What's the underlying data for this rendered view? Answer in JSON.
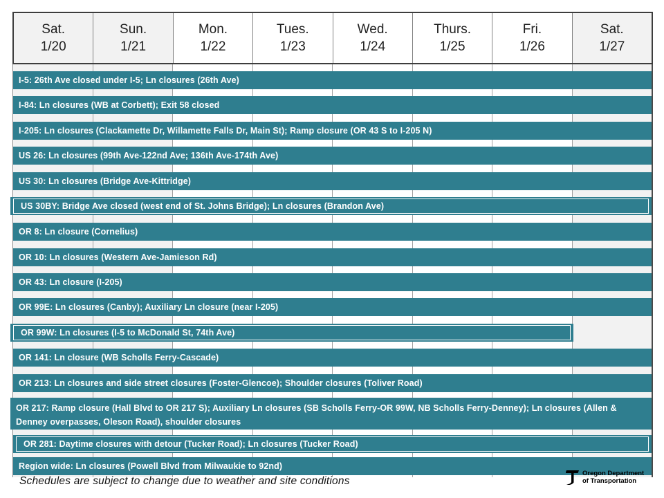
{
  "header": {
    "days": [
      {
        "name": "Sat.",
        "date": "1/20",
        "weekend": true
      },
      {
        "name": "Sun.",
        "date": "1/21",
        "weekend": true
      },
      {
        "name": "Mon.",
        "date": "1/22",
        "weekend": false
      },
      {
        "name": "Tues.",
        "date": "1/23",
        "weekend": false
      },
      {
        "name": "Wed.",
        "date": "1/24",
        "weekend": false
      },
      {
        "name": "Thurs.",
        "date": "1/25",
        "weekend": false
      },
      {
        "name": "Fri.",
        "date": "1/26",
        "weekend": false
      },
      {
        "name": "Sat.",
        "date": "1/27",
        "weekend": true
      }
    ]
  },
  "chart_data": {
    "type": "gantt",
    "title": "Weekly road closure schedule",
    "categories": [
      "Sat. 1/20",
      "Sun. 1/21",
      "Mon. 1/22",
      "Tues. 1/23",
      "Wed. 1/24",
      "Thurs. 1/25",
      "Fri. 1/26",
      "Sat. 1/27"
    ],
    "rows": [
      {
        "task": "I-5: 26th Ave closed under I-5; Ln closures (26th Ave)",
        "start": "1/20",
        "end": "1/27",
        "span_days": 8
      },
      {
        "task": "I-84: Ln closures (WB at Corbett); Exit 58 closed",
        "start": "1/20",
        "end": "1/27",
        "span_days": 8
      },
      {
        "task": "I-205: Ln closures (Clackamette Dr, Willamette Falls Dr, Main St); Ramp closure (OR 43 S to I-205 N)",
        "start": "1/20",
        "end": "1/27",
        "span_days": 8
      },
      {
        "task": "US 26: Ln closures (99th Ave-122nd Ave; 136th Ave-174th Ave)",
        "start": "1/20",
        "end": "1/27",
        "span_days": 8
      },
      {
        "task": "US 30: Ln closures (Bridge Ave-Kittridge)",
        "start": "1/20",
        "end": "1/27",
        "span_days": 8
      },
      {
        "task": "US 30BY: Bridge Ave closed (west end of St. Johns Bridge); Ln closures (Brandon Ave)",
        "start": "1/20",
        "end": "1/27",
        "span_days": 8
      },
      {
        "task": "OR 8: Ln closure (Cornelius)",
        "start": "1/20",
        "end": "1/27",
        "span_days": 8
      },
      {
        "task": "OR 10: Ln closures (Western Ave-Jamieson Rd)",
        "start": "1/20",
        "end": "1/27",
        "span_days": 8
      },
      {
        "task": "OR 43: Ln closure (I-205)",
        "start": "1/20",
        "end": "1/27",
        "span_days": 8
      },
      {
        "task": "OR 99E: Ln closures (Canby); Auxiliary Ln closure (near I-205)",
        "start": "1/20",
        "end": "1/27",
        "span_days": 8
      },
      {
        "task": "OR 99W: Ln closures (I-5 to McDonald St, 74th Ave)",
        "start": "1/20",
        "end": "1/26",
        "span_days": 7
      },
      {
        "task": "OR 141: Ln closure (WB Scholls Ferry-Cascade)",
        "start": "1/20",
        "end": "1/27",
        "span_days": 8
      },
      {
        "task": "OR 213: Ln closures and side street closures (Foster-Glencoe); Shoulder closures (Toliver Road)",
        "start": "1/20",
        "end": "1/27",
        "span_days": 8
      },
      {
        "task": "OR 217: Ramp closure (Hall Blvd to OR 217 S); Auxiliary Ln closures (SB Scholls Ferry-OR 99W, NB Scholls Ferry-Denney); Ln closures (Allen & Denney overpasses, Oleson Road), shoulder closures",
        "start": "1/20",
        "end": "1/27",
        "span_days": 8
      },
      {
        "task": "OR 281: Daytime closures with detour (Tucker Road); Ln closures (Tucker Road)",
        "start": "1/20",
        "end": "1/27",
        "span_days": 8
      },
      {
        "task": "Region wide: Ln closures (Powell Blvd from Milwaukie to 92nd)",
        "start": "1/20",
        "end": "1/27",
        "span_days": 8
      }
    ],
    "legend_position": "none",
    "grid": true
  },
  "render_flags": {
    "outlined_rows": [
      5,
      10,
      14
    ],
    "two_line_rows": [
      13
    ],
    "overhang_rows": [
      5,
      10,
      13
    ],
    "short_rows": [
      10
    ]
  },
  "footer": {
    "note": "Schedules are subject to change due to weather and site conditions"
  },
  "logo": {
    "line1": "Oregon Department",
    "line2": "of Transportation"
  },
  "colors": {
    "bar_teal": "#2f7e8f",
    "weekend_gray": "#f2f2f2",
    "weekday_white": "#ffffff",
    "bar_text": "#ffffff",
    "header_border": "#3d3d3d"
  }
}
